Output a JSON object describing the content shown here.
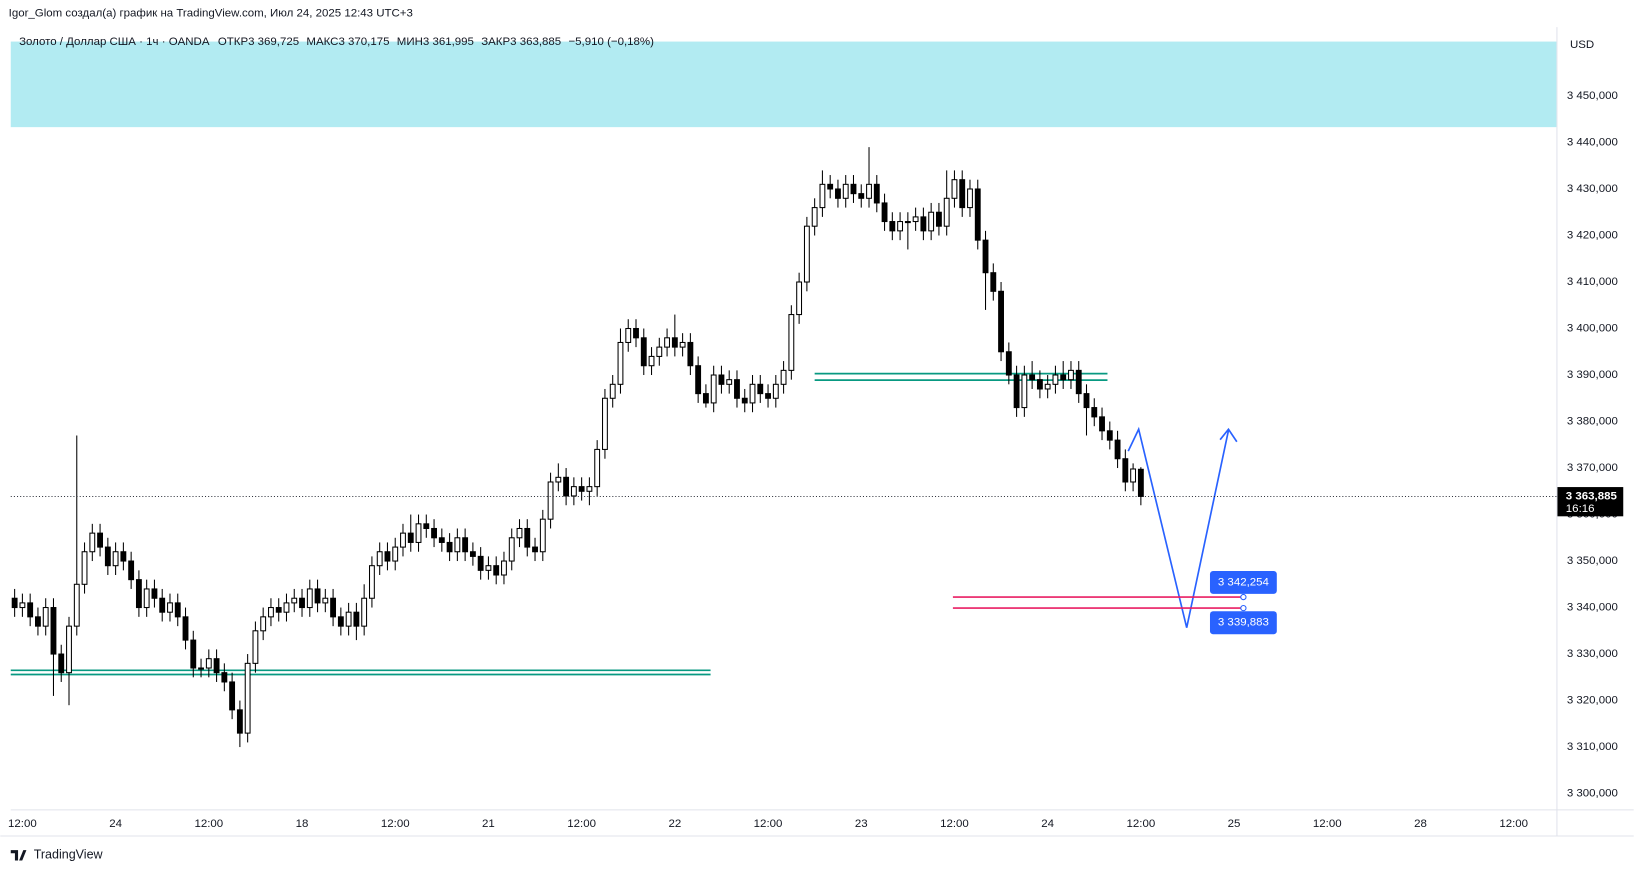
{
  "chart_data": {
    "type": "candlestick",
    "author_note": "Igor_Glom создал(а) график на TradingView.com, Июл 24, 2025 12:43 UTC+3",
    "symbol": "Золото / Доллар США · 1ч · OANDA",
    "legend_values": [
      {
        "value": 3369.725,
        "label": "ОТКР3 369,725"
      },
      {
        "value": 3370.175,
        "label": "МАКС3 370,175"
      },
      {
        "value": 3361.995,
        "label": "МИН3 361,995"
      },
      {
        "value": 3363.885,
        "label": "ЗАКР3 363,885"
      },
      {
        "value": -5.91,
        "label": "−5,910 (−0,18%)"
      }
    ],
    "currency": "USD",
    "brand": "TradingView",
    "up_color": "#ffffff",
    "down_color": "#000000",
    "wick_color": "#000000",
    "x": [
      11,
      12,
      13,
      14,
      15,
      16,
      17,
      18,
      19,
      20,
      21,
      22,
      23,
      24,
      25,
      26,
      27,
      28,
      29,
      30,
      31,
      32,
      33,
      34,
      35,
      36,
      37,
      38,
      39,
      40,
      41,
      42,
      43,
      44,
      45,
      46,
      47,
      48,
      49,
      50,
      51,
      52,
      53,
      54,
      55,
      56,
      57,
      58,
      59,
      60,
      61,
      62,
      63,
      64,
      65,
      66,
      67,
      68,
      69,
      70,
      71,
      72,
      73,
      74,
      75,
      76,
      77,
      78,
      79,
      80,
      81,
      82,
      83,
      84,
      85,
      86,
      87,
      88,
      89,
      90,
      91,
      92,
      93,
      94,
      95,
      96,
      97,
      98,
      99,
      100,
      101,
      102,
      103,
      104,
      105,
      106,
      107,
      108,
      109,
      110,
      111,
      112,
      113,
      114,
      115,
      116,
      117,
      118,
      119,
      120,
      121,
      122,
      123,
      124,
      125,
      126,
      127,
      128,
      129,
      130,
      131,
      132,
      133,
      134,
      135,
      136,
      137,
      138,
      139,
      140,
      141,
      142,
      143,
      144,
      145,
      146,
      147,
      148,
      149,
      150,
      151,
      152,
      153,
      154,
      155,
      156
    ],
    "open": [
      3342,
      3340,
      3341,
      3338,
      3336,
      3340,
      3330,
      3326,
      3336,
      3345,
      3352,
      3356,
      3353,
      3349,
      3352,
      3350,
      3346,
      3340,
      3344,
      3342,
      3339,
      3341,
      3338,
      3333,
      3327,
      3327,
      3329,
      3326,
      3324,
      3318,
      3313,
      3328,
      3335,
      3338,
      3340,
      3339,
      3341,
      3342,
      3340,
      3344,
      3341,
      3342,
      3338,
      3336,
      3339,
      3336,
      3342,
      3349,
      3352,
      3350,
      3353,
      3356,
      3354,
      3358,
      3357,
      3355,
      3354,
      3352,
      3355,
      3352,
      3351,
      3348,
      3349,
      3347,
      3350,
      3355,
      3357,
      3353,
      3352,
      3359,
      3367,
      3368,
      3364,
      3366,
      3365,
      3366,
      3374,
      3385,
      3388,
      3397,
      3400,
      3398,
      3392,
      3394,
      3396,
      3398,
      3396,
      3397,
      3392,
      3386,
      3384,
      3390,
      3388,
      3389,
      3385,
      3384,
      3388,
      3386,
      3385,
      3388,
      3391,
      3403,
      3410,
      3422,
      3426,
      3431,
      3430,
      3428,
      3431,
      3429,
      3428,
      3431,
      3427,
      3423,
      3421,
      3423,
      3423,
      3424,
      3421,
      3425,
      3422,
      3428,
      3432,
      3426,
      3430,
      3419,
      3412,
      3408,
      3395,
      3390,
      3383,
      3390,
      3389,
      3387,
      3388,
      3390,
      3389,
      3391,
      3386,
      3383,
      3381,
      3378,
      3376,
      3372,
      3367,
      3369.725
    ],
    "high": [
      3344,
      3343,
      3343,
      3340,
      3342,
      3342,
      3332,
      3338,
      3377,
      3354,
      3358,
      3358,
      3355,
      3354,
      3354,
      3352,
      3348,
      3346,
      3346,
      3344,
      3343,
      3343,
      3340,
      3335,
      3329,
      3331,
      3331,
      3328,
      3326,
      3320,
      3330,
      3337,
      3340,
      3342,
      3342,
      3343,
      3344,
      3344,
      3346,
      3346,
      3344,
      3344,
      3340,
      3341,
      3341,
      3345,
      3351,
      3354,
      3354,
      3355,
      3358,
      3360,
      3360,
      3360,
      3359,
      3357,
      3356,
      3357,
      3357,
      3354,
      3353,
      3351,
      3351,
      3352,
      3357,
      3359,
      3359,
      3355,
      3361,
      3369,
      3371,
      3370,
      3368,
      3368,
      3368,
      3376,
      3387,
      3390,
      3400,
      3402,
      3402,
      3400,
      3396,
      3398,
      3400,
      3403,
      3399,
      3399,
      3394,
      3388,
      3392,
      3392,
      3391,
      3391,
      3387,
      3390,
      3390,
      3388,
      3390,
      3393,
      3405,
      3412,
      3424,
      3428,
      3434,
      3433,
      3432,
      3433,
      3433,
      3431,
      3439,
      3433,
      3429,
      3425,
      3425,
      3425,
      3426,
      3426,
      3427,
      3427,
      3434,
      3434,
      3434,
      3432,
      3432,
      3421,
      3414,
      3410,
      3397,
      3392,
      3392,
      3393,
      3391,
      3390,
      3392,
      3393,
      3393,
      3393,
      3388,
      3385,
      3383,
      3380,
      3378,
      3374,
      3371,
      3370.175
    ],
    "low": [
      3338,
      3338,
      3336,
      3334,
      3334,
      3321,
      3324,
      3319,
      3334,
      3343,
      3350,
      3351,
      3347,
      3347,
      3348,
      3344,
      3338,
      3338,
      3340,
      3337,
      3337,
      3336,
      3331,
      3325,
      3325,
      3325,
      3324,
      3322,
      3316,
      3310,
      3311,
      3326,
      3333,
      3336,
      3337,
      3337,
      3339,
      3338,
      3338,
      3339,
      3339,
      3336,
      3334,
      3334,
      3333,
      3334,
      3340,
      3347,
      3348,
      3348,
      3351,
      3352,
      3352,
      3355,
      3353,
      3352,
      3350,
      3350,
      3350,
      3349,
      3346,
      3346,
      3345,
      3345,
      3348,
      3353,
      3351,
      3350,
      3350,
      3357,
      3365,
      3362,
      3362,
      3363,
      3362,
      3364,
      3372,
      3383,
      3386,
      3395,
      3396,
      3390,
      3390,
      3392,
      3394,
      3394,
      3394,
      3390,
      3384,
      3383,
      3382,
      3386,
      3386,
      3383,
      3382,
      3382,
      3384,
      3383,
      3383,
      3386,
      3389,
      3401,
      3408,
      3420,
      3424,
      3428,
      3426,
      3426,
      3427,
      3426,
      3426,
      3425,
      3421,
      3419,
      3419,
      3417,
      3421,
      3419,
      3419,
      3420,
      3420,
      3426,
      3424,
      3424,
      3417,
      3404,
      3406,
      3393,
      3388,
      3381,
      3381,
      3387,
      3385,
      3385,
      3386,
      3387,
      3387,
      3384,
      3377,
      3379,
      3376,
      3374,
      3370,
      3365,
      3365,
      3361.995
    ],
    "close": [
      3340,
      3341,
      3338,
      3336,
      3340,
      3330,
      3326,
      3336,
      3345,
      3352,
      3356,
      3353,
      3349,
      3352,
      3350,
      3346,
      3340,
      3344,
      3342,
      3339,
      3341,
      3338,
      3333,
      3327,
      3327,
      3329,
      3326,
      3324,
      3318,
      3313,
      3328,
      3335,
      3338,
      3340,
      3339,
      3341,
      3342,
      3340,
      3344,
      3341,
      3342,
      3338,
      3336,
      3339,
      3336,
      3342,
      3349,
      3352,
      3350,
      3353,
      3356,
      3354,
      3358,
      3357,
      3355,
      3354,
      3352,
      3355,
      3352,
      3351,
      3348,
      3349,
      3347,
      3350,
      3355,
      3357,
      3353,
      3352,
      3359,
      3367,
      3368,
      3364,
      3366,
      3365,
      3366,
      3374,
      3385,
      3388,
      3397,
      3400,
      3398,
      3392,
      3394,
      3396,
      3398,
      3396,
      3397,
      3392,
      3386,
      3384,
      3390,
      3388,
      3389,
      3385,
      3384,
      3388,
      3386,
      3385,
      3388,
      3391,
      3403,
      3410,
      3422,
      3426,
      3431,
      3430,
      3428,
      3431,
      3429,
      3428,
      3431,
      3427,
      3423,
      3421,
      3423,
      3423,
      3424,
      3421,
      3425,
      3422,
      3428,
      3432,
      3426,
      3430,
      3419,
      3412,
      3408,
      3395,
      3390,
      3383,
      3390,
      3389,
      3387,
      3388,
      3390,
      3389,
      3391,
      3386,
      3383,
      3381,
      3378,
      3376,
      3372,
      3367,
      3369.795,
      3363.885
    ],
    "xlim": [
      10.5,
      209.5
    ],
    "ylim": [
      3296.6,
      3464.8
    ],
    "xticks": [
      {
        "value": 12,
        "label": "12:00"
      },
      24,
      {
        "value": 36,
        "label": "12:00"
      },
      {
        "value": 48,
        "label": "18"
      },
      {
        "value": 60,
        "label": "12:00"
      },
      {
        "value": 72,
        "label": "21"
      },
      {
        "value": 84,
        "label": "12:00"
      },
      {
        "value": 96,
        "label": "22"
      },
      {
        "value": 108,
        "label": "12:00"
      },
      {
        "value": 120,
        "label": "23"
      },
      {
        "value": 132,
        "label": "12:00"
      },
      {
        "value": 144,
        "label": "24"
      },
      {
        "value": 156,
        "label": "12:00"
      },
      {
        "value": 168,
        "label": "25"
      },
      {
        "value": 180,
        "label": "12:00"
      },
      {
        "value": 192,
        "label": "28"
      },
      {
        "value": 204,
        "label": "12:00"
      }
    ],
    "yticks": [
      {
        "value": 3300,
        "label": "3 300,000"
      },
      {
        "value": 3310,
        "label": "3 310,000"
      },
      {
        "value": 3320,
        "label": "3 320,000"
      },
      {
        "value": 3330,
        "label": "3 330,000"
      },
      {
        "value": 3340,
        "label": "3 340,000"
      },
      {
        "value": 3350,
        "label": "3 350,000"
      },
      {
        "value": 3360,
        "label": "3 360,000"
      },
      {
        "value": 3370,
        "label": "3 370,000"
      },
      {
        "value": 3380,
        "label": "3 380,000"
      },
      {
        "value": 3390,
        "label": "3 390,000"
      },
      {
        "value": 3400,
        "label": "3 400,000"
      },
      {
        "value": 3410,
        "label": "3 410,000"
      },
      {
        "value": 3420,
        "label": "3 420,000"
      },
      {
        "value": 3430,
        "label": "3 430,000"
      },
      {
        "value": 3440,
        "label": "3 440,000"
      },
      {
        "value": 3450,
        "label": "3 450,000"
      }
    ],
    "grid": false,
    "zone": {
      "values": [
        3443.3,
        3461.7
      ],
      "color": "#b2ebf2"
    },
    "levels": [
      {
        "values": [
          3326.5,
          3325.6
        ],
        "x": [
          10.5,
          100.6
        ],
        "color": "#089981"
      },
      {
        "values": [
          3390.3,
          3388.9
        ],
        "x": [
          114,
          151.7
        ],
        "color": "#089981"
      }
    ],
    "targets": [
      {
        "value": 3342.254,
        "label": "3 342,254"
      },
      {
        "value": 3339.883,
        "label": "3 339,883"
      }
    ],
    "targets_x": [
      131.8,
      169.2
    ],
    "targets_color": "#e91e63",
    "last_price": {
      "value": 3363.885,
      "label": "3 363,885",
      "countdown": "16:16"
    }
  }
}
